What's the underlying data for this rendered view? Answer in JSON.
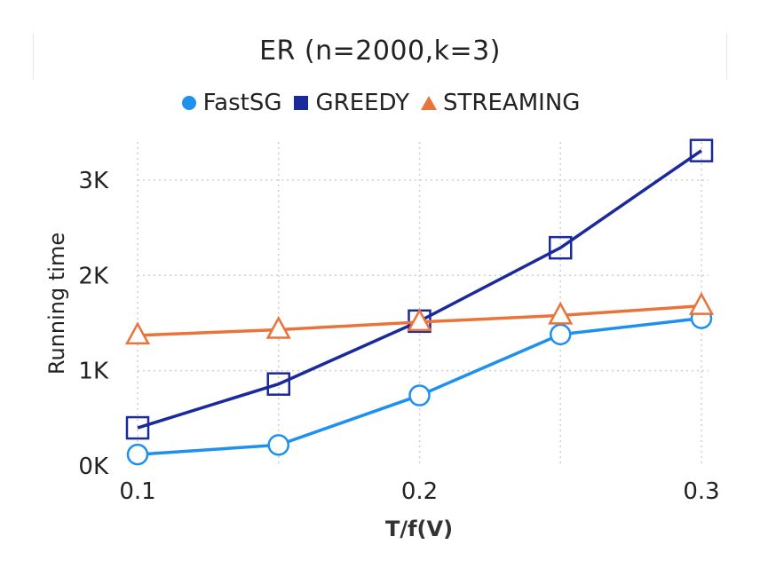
{
  "chart_data": {
    "type": "line",
    "title": "ER (n=2000,k=3)",
    "xlabel": "T/f(V)",
    "ylabel": "Running time",
    "x": [
      0.1,
      0.15,
      0.2,
      0.25,
      0.3
    ],
    "xticks": [
      0.1,
      0.2,
      0.3
    ],
    "xtick_labels": [
      "0.1",
      "0.2",
      "0.3"
    ],
    "yticks": [
      0,
      1000,
      2000,
      3000
    ],
    "ytick_labels": [
      "0K",
      "1K",
      "2K",
      "3K"
    ],
    "xlim": [
      0.1,
      0.3
    ],
    "ylim": [
      0,
      3400
    ],
    "grid": true,
    "legend_position": "top-center",
    "series": [
      {
        "name": "FastSG",
        "color": "#1e90f0",
        "marker": "circle",
        "values": [
          120,
          220,
          740,
          1380,
          1550
        ]
      },
      {
        "name": "GREEDY",
        "color": "#1a2a9a",
        "marker": "square",
        "values": [
          400,
          860,
          1520,
          2290,
          3310
        ]
      },
      {
        "name": "STREAMING",
        "color": "#e8743b",
        "marker": "triangle",
        "values": [
          1370,
          1430,
          1510,
          1580,
          1680
        ]
      }
    ]
  }
}
